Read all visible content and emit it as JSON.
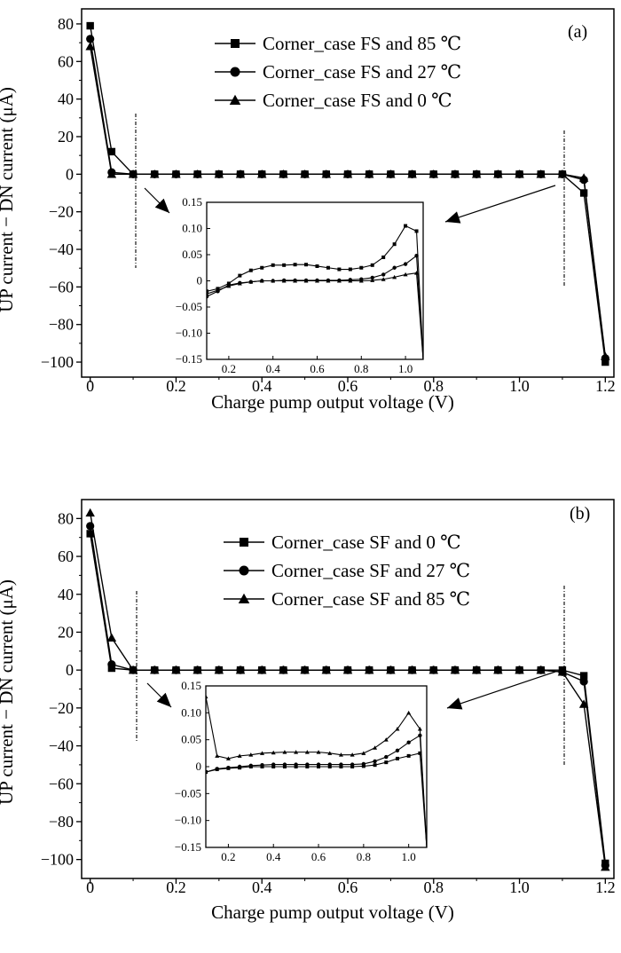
{
  "chart_data": [
    {
      "type": "line",
      "panel_label": "(a)",
      "xlabel": "Charge pump output voltage (V)",
      "ylabel": "UP current − DN current (μA)",
      "xlim": [
        -0.02,
        1.22
      ],
      "ylim": [
        -108,
        88
      ],
      "xticks": [
        0,
        0.2,
        0.4,
        0.6,
        0.8,
        1.0,
        1.2
      ],
      "xtick_labels": [
        "0",
        "0.2",
        "0.4",
        "0.6",
        "0.8",
        "1.0",
        "1.2"
      ],
      "yticks": [
        80,
        60,
        40,
        20,
        0,
        -20,
        -40,
        -60,
        -80,
        -100
      ],
      "ytick_labels": [
        "80",
        "60",
        "40",
        "20",
        "0",
        "−20",
        "−40",
        "−60",
        "−80",
        "−100"
      ],
      "legend_position": "top-center",
      "x": [
        0,
        0.05,
        0.1,
        0.15,
        0.2,
        0.25,
        0.3,
        0.35,
        0.4,
        0.45,
        0.5,
        0.55,
        0.6,
        0.65,
        0.7,
        0.75,
        0.8,
        0.85,
        0.9,
        0.95,
        1.0,
        1.05,
        1.1,
        1.15,
        1.2
      ],
      "series": [
        {
          "name": "Corner_case FS and 85 ℃",
          "marker": "square",
          "values": [
            79,
            12,
            0,
            0,
            0,
            0,
            0,
            0,
            0,
            0,
            0,
            0,
            0,
            0,
            0,
            0,
            0,
            0,
            0,
            0,
            0,
            0,
            0,
            -10,
            -100
          ]
        },
        {
          "name": "Corner_case FS and 27 ℃",
          "marker": "circle",
          "values": [
            72,
            1,
            0,
            0,
            0,
            0,
            0,
            0,
            0,
            0,
            0,
            0,
            0,
            0,
            0,
            0,
            0,
            0,
            0,
            0,
            0,
            0,
            0,
            -3,
            -98
          ]
        },
        {
          "name": "Corner_case FS and 0 ℃",
          "marker": "triangle",
          "values": [
            68,
            0,
            0,
            0,
            0,
            0,
            0,
            0,
            0,
            0,
            0,
            0,
            0,
            0,
            0,
            0,
            0,
            0,
            0,
            0,
            0,
            0,
            0,
            -2,
            -97
          ]
        }
      ],
      "inset": {
        "xlim": [
          0.1,
          1.08
        ],
        "ylim": [
          -0.15,
          0.15
        ],
        "xticks": [
          0.2,
          0.4,
          0.6,
          0.8,
          1.0
        ],
        "xtick_labels": [
          "0.2",
          "0.4",
          "0.6",
          "0.8",
          "1.0"
        ],
        "yticks": [
          0.15,
          0.1,
          0.05,
          0,
          -0.05,
          -0.1,
          -0.15
        ],
        "ytick_labels": [
          "0.15",
          "0.10",
          "0.05",
          "0",
          "−0.05",
          "−0.10",
          "−0.15"
        ],
        "x": [
          0.1,
          0.15,
          0.2,
          0.25,
          0.3,
          0.35,
          0.4,
          0.45,
          0.5,
          0.55,
          0.6,
          0.65,
          0.7,
          0.75,
          0.8,
          0.85,
          0.9,
          0.95,
          1.0,
          1.05,
          1.08
        ],
        "series": [
          {
            "marker": "square",
            "values": [
              -0.02,
              -0.015,
              -0.005,
              0.01,
              0.02,
              0.025,
              0.03,
              0.03,
              0.031,
              0.031,
              0.028,
              0.025,
              0.022,
              0.022,
              0.025,
              0.03,
              0.045,
              0.07,
              0.105,
              0.095,
              -0.15
            ]
          },
          {
            "marker": "circle",
            "values": [
              -0.03,
              -0.02,
              -0.008,
              -0.004,
              -0.002,
              0,
              0,
              0.001,
              0.001,
              0.001,
              0.001,
              0.001,
              0.001,
              0.002,
              0.003,
              0.006,
              0.012,
              0.025,
              0.032,
              0.048,
              -0.15
            ]
          },
          {
            "marker": "triangle",
            "values": [
              -0.025,
              -0.018,
              -0.01,
              -0.005,
              -0.002,
              0,
              0,
              0,
              0,
              0,
              0,
              0,
              0,
              0,
              0,
              0.001,
              0.003,
              0.007,
              0.012,
              0.015,
              -0.15
            ]
          }
        ]
      }
    },
    {
      "type": "line",
      "panel_label": "(b)",
      "xlabel": "Charge pump output voltage (V)",
      "ylabel": "UP current − DN current (μA)",
      "xlim": [
        -0.02,
        1.22
      ],
      "ylim": [
        -110,
        90
      ],
      "xticks": [
        0,
        0.2,
        0.4,
        0.6,
        0.8,
        1.0,
        1.2
      ],
      "xtick_labels": [
        "0",
        "0.2",
        "0.4",
        "0.6",
        "0.8",
        "1.0",
        "1.2"
      ],
      "yticks": [
        80,
        60,
        40,
        20,
        0,
        -20,
        -40,
        -60,
        -80,
        -100
      ],
      "ytick_labels": [
        "80",
        "60",
        "40",
        "20",
        "0",
        "−20",
        "−40",
        "−60",
        "−80",
        "−100"
      ],
      "legend_position": "top-center",
      "x": [
        0,
        0.05,
        0.1,
        0.15,
        0.2,
        0.25,
        0.3,
        0.35,
        0.4,
        0.45,
        0.5,
        0.55,
        0.6,
        0.65,
        0.7,
        0.75,
        0.8,
        0.85,
        0.9,
        0.95,
        1.0,
        1.05,
        1.1,
        1.15,
        1.2
      ],
      "series": [
        {
          "name": "Corner_case SF and 0 ℃",
          "marker": "square",
          "values": [
            72,
            1,
            0,
            0,
            0,
            0,
            0,
            0,
            0,
            0,
            0,
            0,
            0,
            0,
            0,
            0,
            0,
            0,
            0,
            0,
            0,
            0,
            0,
            -3,
            -102
          ]
        },
        {
          "name": "Corner_case SF and 27 ℃",
          "marker": "circle",
          "values": [
            76,
            3,
            0,
            0,
            0,
            0,
            0,
            0,
            0,
            0,
            0,
            0,
            0,
            0,
            0,
            0,
            0,
            0,
            0,
            0,
            0,
            0,
            -1,
            -6,
            -103
          ]
        },
        {
          "name": "Corner_case SF and 85 ℃",
          "marker": "triangle",
          "values": [
            83,
            17,
            0,
            0,
            0,
            0,
            0,
            0,
            0,
            0,
            0,
            0,
            0,
            0,
            0,
            0,
            0,
            0,
            0,
            0,
            0,
            0,
            -1,
            -18,
            -104
          ]
        }
      ],
      "inset": {
        "xlim": [
          0.1,
          1.08
        ],
        "ylim": [
          -0.15,
          0.15
        ],
        "xticks": [
          0.2,
          0.4,
          0.6,
          0.8,
          1.0
        ],
        "xtick_labels": [
          "0.2",
          "0.4",
          "0.6",
          "0.8",
          "1.0"
        ],
        "yticks": [
          0.15,
          0.1,
          0.05,
          0,
          -0.05,
          -0.1,
          -0.15
        ],
        "ytick_labels": [
          "0.15",
          "0.10",
          "0.05",
          "0",
          "−0.05",
          "−0.10",
          "−0.15"
        ],
        "x": [
          0.1,
          0.15,
          0.2,
          0.25,
          0.3,
          0.35,
          0.4,
          0.45,
          0.5,
          0.55,
          0.6,
          0.65,
          0.7,
          0.75,
          0.8,
          0.85,
          0.9,
          0.95,
          1.0,
          1.05,
          1.08
        ],
        "series": [
          {
            "marker": "square",
            "values": [
              -0.01,
              -0.005,
              -0.003,
              -0.002,
              0,
              0,
              0,
              0,
              0,
              0,
              0,
              0,
              0,
              0,
              0.001,
              0.003,
              0.008,
              0.015,
              0.02,
              0.025,
              -0.15
            ]
          },
          {
            "marker": "circle",
            "values": [
              -0.01,
              -0.004,
              -0.002,
              0,
              0.002,
              0.003,
              0.004,
              0.004,
              0.004,
              0.004,
              0.004,
              0.004,
              0.004,
              0.004,
              0.005,
              0.01,
              0.018,
              0.03,
              0.045,
              0.058,
              -0.15
            ]
          },
          {
            "marker": "triangle",
            "values": [
              0.13,
              0.02,
              0.015,
              0.02,
              0.022,
              0.025,
              0.026,
              0.027,
              0.027,
              0.027,
              0.027,
              0.025,
              0.022,
              0.022,
              0.025,
              0.035,
              0.05,
              0.07,
              0.1,
              0.07,
              -0.15
            ]
          }
        ]
      }
    }
  ]
}
